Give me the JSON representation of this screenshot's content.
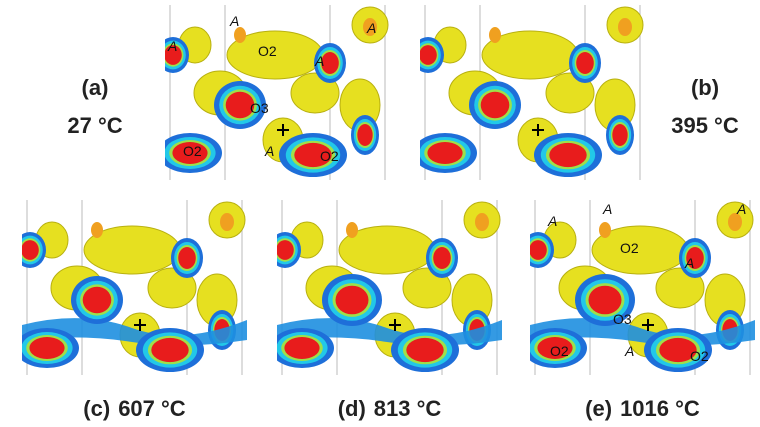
{
  "panels": [
    {
      "label": "(a)",
      "temperature": "27 °C",
      "annotations": [
        "A",
        "A",
        "O2",
        "A",
        "A",
        "O3",
        "A",
        "O2",
        "O2"
      ]
    },
    {
      "label": "(b)",
      "temperature": "395 °C"
    },
    {
      "label": "(c)",
      "temperature": "607 °C"
    },
    {
      "label": "(d)",
      "temperature": "813 °C"
    },
    {
      "label": "(e)",
      "temperature": "1016 °C",
      "annotations": [
        "A",
        "A",
        "A",
        "O2",
        "A",
        "O3",
        "A",
        "O2",
        "O2"
      ]
    }
  ]
}
